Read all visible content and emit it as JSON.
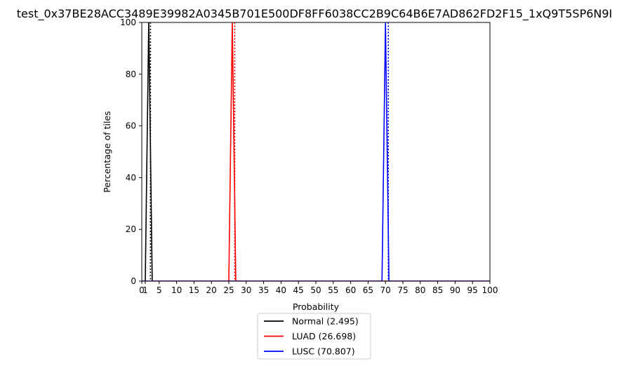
{
  "chart_data": {
    "type": "line",
    "title": "test_0x37BE28ACC3489E39982A0345B701E500DF8FF6038CC2B9C64B6E7AD862FD2F15_1xQ9T5SP6N9I",
    "xlabel": "Probability",
    "ylabel": "Percentage of tiles",
    "xlim": [
      0,
      100
    ],
    "ylim": [
      0,
      100
    ],
    "x_ticks": [
      "0",
      "1",
      "5",
      "10",
      "15",
      "20",
      "25",
      "30",
      "35",
      "40",
      "45",
      "50",
      "55",
      "60",
      "65",
      "70",
      "75",
      "80",
      "85",
      "90",
      "95",
      "100"
    ],
    "y_ticks": [
      "0",
      "20",
      "40",
      "60",
      "80",
      "100"
    ],
    "grid": false,
    "legend_position": "bottom-center",
    "series": [
      {
        "name": "Normal (2.495)",
        "color": "#000000",
        "x": [
          0,
          1,
          2,
          3,
          100
        ],
        "y": [
          0,
          0,
          100,
          0,
          0
        ],
        "mean": 2.495
      },
      {
        "name": "LUAD (26.698)",
        "color": "#ff0000",
        "x": [
          0,
          25,
          26,
          27,
          100
        ],
        "y": [
          0,
          0,
          100,
          0,
          0
        ],
        "mean": 26.698
      },
      {
        "name": "LUSC (70.807)",
        "color": "#0000ff",
        "x": [
          0,
          69,
          70,
          71,
          100
        ],
        "y": [
          0,
          0,
          100,
          0,
          0
        ],
        "mean": 70.807
      }
    ]
  }
}
